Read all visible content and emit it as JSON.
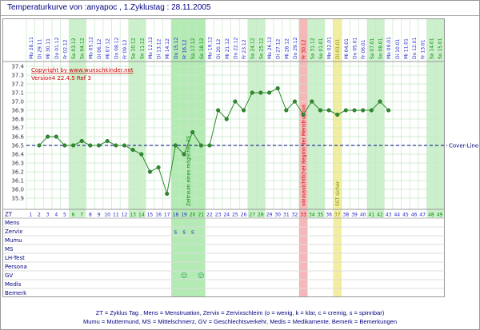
{
  "window_title": "Temperaturkurve von :anyapoc , 1.Zyklustag : 28.11.2005",
  "copyright": {
    "line1": "Copyright by www.wunschkinder.net",
    "line2": "Version4 22.4.5 Ref 3"
  },
  "legend": {
    "line1": "ZT = Zyklus Tag , Mens = Menstruation, Zervix = Zervixschleim (o = wenig, k = klar, c = cremig, s = spinnbar)",
    "line2": "Mumu = Muttermund, MS = Mittelschmerz, GV = Geschlechtsverkehr, Medis = Medikamente, Bemerk = Bemerkungen"
  },
  "colors": {
    "navy": "#000080",
    "day_blue": "#2222cc",
    "weekend_green_text": "#008800",
    "red": "#cc0000",
    "olive": "#8a8a00",
    "grid": "#c8e8c8",
    "weekend_bg": "#ccf0cc",
    "zone_bg": "#b4eab4",
    "mens_bg": "#f5b8b8",
    "sst_bg": "#f2eda0",
    "dot_green": "#2e8b2e",
    "dot_edge": "#1c5c1c",
    "ylabel": "#333344"
  },
  "chart_data": {
    "type": "line",
    "title": "Temperaturkurve von :anyapoc , 1.Zyklustag : 28.11.2005",
    "ylim": [
      35.9,
      37.4
    ],
    "ytick_step": 0.1,
    "cover_line": {
      "value": 36.5,
      "label": "Cover-Line"
    },
    "annotations": {
      "es_zone": {
        "label": "Zeitraum eines möglichen ES",
        "days": [
          18,
          21
        ]
      },
      "mens": {
        "label": "voraussichtlicher Beginn der Menstruation",
        "day": 33
      },
      "sst": {
        "label": "SST sicher",
        "day": 37
      }
    },
    "days": [
      {
        "zt": 1,
        "date": "Mo 28.11"
      },
      {
        "zt": 2,
        "date": "Di 29.11"
      },
      {
        "zt": 3,
        "date": "Mi 30.11"
      },
      {
        "zt": 4,
        "date": "Do 01.12"
      },
      {
        "zt": 5,
        "date": "Fr 02.12"
      },
      {
        "zt": 6,
        "date": "Sa 03.12"
      },
      {
        "zt": 7,
        "date": "So 04.12"
      },
      {
        "zt": 8,
        "date": "Mo 05.12"
      },
      {
        "zt": 9,
        "date": "Di 06.12"
      },
      {
        "zt": 10,
        "date": "Mi 07.12"
      },
      {
        "zt": 11,
        "date": "Do 08.12"
      },
      {
        "zt": 12,
        "date": "Fr 09.12"
      },
      {
        "zt": 13,
        "date": "Sa 10.12"
      },
      {
        "zt": 14,
        "date": "So 11.12"
      },
      {
        "zt": 15,
        "date": "Mo 12.12"
      },
      {
        "zt": 16,
        "date": "Di 13.12"
      },
      {
        "zt": 17,
        "date": "Mi 14.12"
      },
      {
        "zt": 18,
        "date": "Do 15.12"
      },
      {
        "zt": 19,
        "date": "Fr 16.12"
      },
      {
        "zt": 20,
        "date": "Sa 17.12"
      },
      {
        "zt": 21,
        "date": "So 18.12"
      },
      {
        "zt": 22,
        "date": "Mo 19.12"
      },
      {
        "zt": 23,
        "date": "Di 20.12"
      },
      {
        "zt": 24,
        "date": "Mi 21.12"
      },
      {
        "zt": 25,
        "date": "Do 22.12"
      },
      {
        "zt": 26,
        "date": "Fr 23.12"
      },
      {
        "zt": 27,
        "date": "Sa 24.12"
      },
      {
        "zt": 28,
        "date": "So 25.12"
      },
      {
        "zt": 29,
        "date": "Mo 26.12"
      },
      {
        "zt": 30,
        "date": "Di 27.12"
      },
      {
        "zt": 31,
        "date": "Mi 28.12"
      },
      {
        "zt": 32,
        "date": "Do 29.12"
      },
      {
        "zt": 33,
        "date": "Fr 30.12"
      },
      {
        "zt": 34,
        "date": "Sa 31.12"
      },
      {
        "zt": 35,
        "date": "So 01.01"
      },
      {
        "zt": 36,
        "date": "Mo 02.01"
      },
      {
        "zt": 37,
        "date": "Di 03.01"
      },
      {
        "zt": 38,
        "date": "Mi 04.01"
      },
      {
        "zt": 39,
        "date": "Do 05.01"
      },
      {
        "zt": 40,
        "date": "Fr 06.01"
      },
      {
        "zt": 41,
        "date": "Sa 07.01"
      },
      {
        "zt": 42,
        "date": "So 08.01"
      },
      {
        "zt": 43,
        "date": "Mo 09.01"
      },
      {
        "zt": 44,
        "date": "Di 10.01"
      },
      {
        "zt": 45,
        "date": "Mi 11.01"
      },
      {
        "zt": 46,
        "date": "Do 12.01"
      },
      {
        "zt": 47,
        "date": "Fr 13.01"
      },
      {
        "zt": 48,
        "date": "Sa 14.01"
      },
      {
        "zt": 49,
        "date": "So 15.01"
      }
    ],
    "temps": [
      null,
      36.5,
      36.6,
      36.6,
      36.5,
      36.5,
      36.55,
      36.5,
      36.5,
      36.55,
      36.5,
      36.5,
      36.45,
      36.4,
      36.2,
      36.25,
      35.95,
      36.5,
      36.4,
      36.65,
      36.5,
      36.5,
      36.9,
      36.8,
      37.0,
      36.9,
      37.1,
      37.1,
      37.1,
      37.15,
      36.9,
      37.0,
      36.85,
      37.0,
      36.9,
      36.9,
      36.85,
      36.9,
      36.9,
      36.9,
      36.9,
      37.0,
      36.9,
      null,
      null,
      null,
      null,
      null,
      null
    ]
  },
  "table": {
    "rows": [
      "ZT",
      "Mens",
      "Zervix",
      "Mumu",
      "MS",
      "LH-Test",
      "Persona",
      "GV",
      "Medis",
      "Bemerk"
    ],
    "marks": [
      {
        "row": "Zervix",
        "day": 18,
        "text": "s",
        "color": "#2222cc"
      },
      {
        "row": "Zervix",
        "day": 19,
        "text": "s",
        "color": "#2222cc"
      },
      {
        "row": "Zervix",
        "day": 20,
        "text": "s",
        "color": "#2222cc"
      },
      {
        "row": "GV",
        "day": 19,
        "text": "☺",
        "color": "#2a9d5c"
      },
      {
        "row": "GV",
        "day": 21,
        "text": "☺",
        "color": "#2a9d5c"
      }
    ]
  }
}
